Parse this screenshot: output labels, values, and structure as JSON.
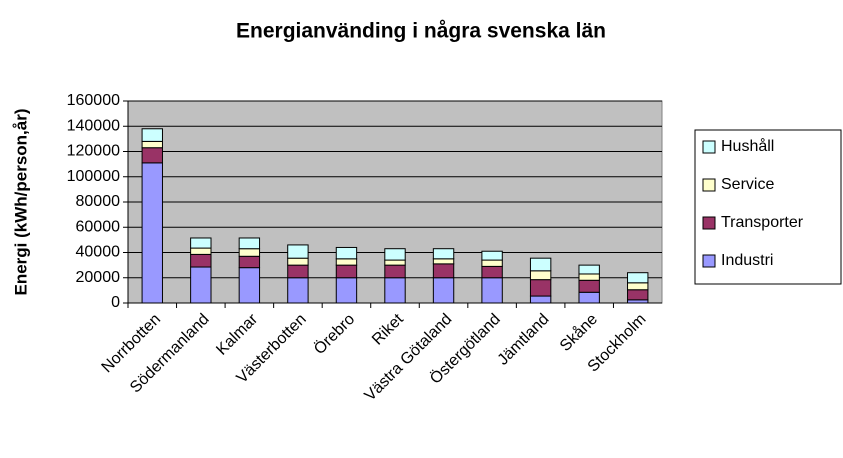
{
  "chart_data": {
    "type": "stacked_bar",
    "title": "Energianvänding i några svenska län",
    "y_label": "Energi (kWh/person,år)",
    "categories": [
      "Norrbotten",
      "Södermanland",
      "Kalmar",
      "Västerbotten",
      "Örebro",
      "Riket",
      "Västra Götaland",
      "Östergötland",
      "Jämtland",
      "Skåne",
      "Stockholm"
    ],
    "series": [
      {
        "name": "Industri",
        "color": "#9999ff",
        "values": [
          111000,
          28500,
          28000,
          20000,
          20000,
          20000,
          20000,
          20000,
          5500,
          8500,
          2500
        ]
      },
      {
        "name": "Transporter",
        "color": "#993366",
        "values": [
          12000,
          10000,
          9000,
          10000,
          10000,
          10000,
          11000,
          9000,
          13000,
          9500,
          8000
        ]
      },
      {
        "name": "Service",
        "color": "#ffffcc",
        "values": [
          5000,
          5000,
          6000,
          5500,
          5000,
          4000,
          4000,
          5000,
          7000,
          5000,
          5500
        ]
      },
      {
        "name": "Hushåll",
        "color": "#ccffff",
        "values": [
          10000,
          8000,
          8500,
          10500,
          9000,
          9000,
          8000,
          7000,
          10000,
          7000,
          8000
        ]
      }
    ],
    "ylim": [
      0,
      160000
    ],
    "yticks": [
      0,
      20000,
      40000,
      60000,
      80000,
      100000,
      120000,
      140000,
      160000
    ],
    "grid": true,
    "plot_background": "#c0c0c0",
    "legend": "right"
  }
}
